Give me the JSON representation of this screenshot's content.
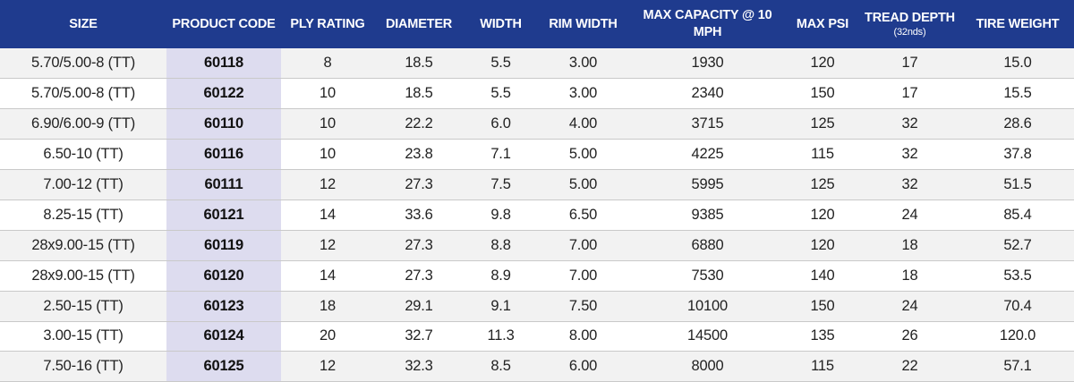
{
  "headers": [
    {
      "key": "size",
      "label": "SIZE",
      "sub": ""
    },
    {
      "key": "code",
      "label": "PRODUCT CODE",
      "sub": ""
    },
    {
      "key": "ply",
      "label": "PLY RATING",
      "sub": ""
    },
    {
      "key": "diameter",
      "label": "DIAMETER",
      "sub": ""
    },
    {
      "key": "width",
      "label": "WIDTH",
      "sub": ""
    },
    {
      "key": "rim",
      "label": "RIM WIDTH",
      "sub": ""
    },
    {
      "key": "capacity",
      "label": "MAX CAPACITY @ 10 MPH",
      "sub": ""
    },
    {
      "key": "psi",
      "label": "MAX PSI",
      "sub": ""
    },
    {
      "key": "tread",
      "label": "TREAD DEPTH",
      "sub": "(32nds)"
    },
    {
      "key": "weight",
      "label": "TIRE WEIGHT",
      "sub": ""
    }
  ],
  "rows": [
    [
      "5.70/5.00-8 (TT)",
      "60118",
      "8",
      "18.5",
      "5.5",
      "3.00",
      "1930",
      "120",
      "17",
      "15.0"
    ],
    [
      "5.70/5.00-8 (TT)",
      "60122",
      "10",
      "18.5",
      "5.5",
      "3.00",
      "2340",
      "150",
      "17",
      "15.5"
    ],
    [
      "6.90/6.00-9 (TT)",
      "60110",
      "10",
      "22.2",
      "6.0",
      "4.00",
      "3715",
      "125",
      "32",
      "28.6"
    ],
    [
      "6.50-10 (TT)",
      "60116",
      "10",
      "23.8",
      "7.1",
      "5.00",
      "4225",
      "115",
      "32",
      "37.8"
    ],
    [
      "7.00-12 (TT)",
      "60111",
      "12",
      "27.3",
      "7.5",
      "5.00",
      "5995",
      "125",
      "32",
      "51.5"
    ],
    [
      "8.25-15 (TT)",
      "60121",
      "14",
      "33.6",
      "9.8",
      "6.50",
      "9385",
      "120",
      "24",
      "85.4"
    ],
    [
      "28x9.00-15 (TT)",
      "60119",
      "12",
      "27.3",
      "8.8",
      "7.00",
      "6880",
      "120",
      "18",
      "52.7"
    ],
    [
      "28x9.00-15 (TT)",
      "60120",
      "14",
      "27.3",
      "8.9",
      "7.00",
      "7530",
      "140",
      "18",
      "53.5"
    ],
    [
      "2.50-15 (TT)",
      "60123",
      "18",
      "29.1",
      "9.1",
      "7.50",
      "10100",
      "150",
      "24",
      "70.4"
    ],
    [
      "3.00-15 (TT)",
      "60124",
      "20",
      "32.7",
      "11.3",
      "8.00",
      "14500",
      "135",
      "26",
      "120.0"
    ],
    [
      "7.50-16 (TT)",
      "60125",
      "12",
      "32.3",
      "8.5",
      "6.00",
      "8000",
      "115",
      "22",
      "57.1"
    ]
  ],
  "colors": {
    "header_bg": "#1f3b8e",
    "code_column_bg": "#dddcef",
    "row_alt_bg": "#f2f2f2"
  }
}
